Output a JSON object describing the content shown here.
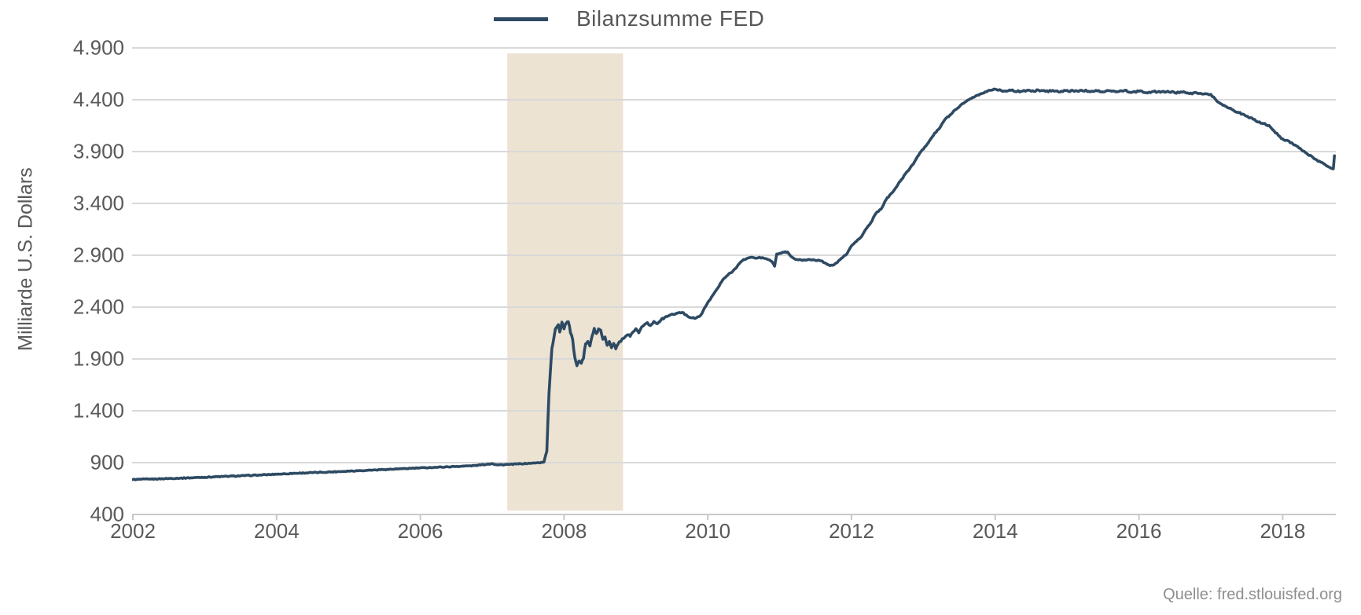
{
  "legend": {
    "label": "Bilanzsumme FED"
  },
  "source": {
    "label": "Quelle: fred.stlouisfed.org"
  },
  "colors": {
    "line": "#2e4a63",
    "band": "#ece3d3",
    "grid": "#d9d9d9",
    "axis": "#c9c9c9",
    "tick_text": "#595959",
    "legend_text": "#575757",
    "source_text": "#8e8e8e"
  },
  "chart_data": {
    "type": "line",
    "title": "Bilanzsumme FED",
    "xlabel": "",
    "ylabel": "Milliarde U.S. Dollars",
    "xlim": [
      2002,
      2018.72
    ],
    "ylim": [
      400,
      4900
    ],
    "grid": true,
    "legend_position": "top-center",
    "y_ticks": [
      {
        "value": 400,
        "label": "400"
      },
      {
        "value": 900,
        "label": "900"
      },
      {
        "value": 1400,
        "label": "1.400"
      },
      {
        "value": 1900,
        "label": "1.900"
      },
      {
        "value": 2400,
        "label": "2.400"
      },
      {
        "value": 2900,
        "label": "2.900"
      },
      {
        "value": 3400,
        "label": "3.400"
      },
      {
        "value": 3900,
        "label": "3.900"
      },
      {
        "value": 4400,
        "label": "4.400"
      },
      {
        "value": 4900,
        "label": "4.900"
      }
    ],
    "x_ticks": [
      {
        "value": 2002,
        "label": "2002"
      },
      {
        "value": 2004,
        "label": "2004"
      },
      {
        "value": 2006,
        "label": "2006"
      },
      {
        "value": 2008,
        "label": "2008"
      },
      {
        "value": 2010,
        "label": "2010"
      },
      {
        "value": 2012,
        "label": "2012"
      },
      {
        "value": 2014,
        "label": "2014"
      },
      {
        "value": 2016,
        "label": "2016"
      },
      {
        "value": 2018,
        "label": "2018"
      }
    ],
    "band": {
      "x_from": 2007.21,
      "x_to": 2008.82,
      "color": "#ece3d3"
    },
    "noise_segments": [
      {
        "until": 2007.74,
        "amp": 4
      },
      {
        "until": 2008.92,
        "amp": 12
      },
      {
        "until": 2009.96,
        "amp": 7
      },
      {
        "until": 2013.95,
        "amp": 6
      },
      {
        "until": 2017.02,
        "amp": 8
      },
      {
        "until": 2018.6,
        "amp": 7
      },
      {
        "until": 2019.0,
        "amp": 3
      }
    ],
    "series": [
      {
        "name": "Bilanzsumme FED",
        "color": "#2e4a63",
        "points": [
          [
            2002.0,
            737
          ],
          [
            2002.25,
            741
          ],
          [
            2002.5,
            747
          ],
          [
            2002.75,
            752
          ],
          [
            2003.0,
            759
          ],
          [
            2003.25,
            766
          ],
          [
            2003.5,
            773
          ],
          [
            2003.75,
            780
          ],
          [
            2004.0,
            788
          ],
          [
            2004.25,
            797
          ],
          [
            2004.5,
            803
          ],
          [
            2004.75,
            810
          ],
          [
            2005.0,
            818
          ],
          [
            2005.25,
            826
          ],
          [
            2005.5,
            833
          ],
          [
            2005.75,
            841
          ],
          [
            2006.0,
            849
          ],
          [
            2006.25,
            856
          ],
          [
            2006.5,
            863
          ],
          [
            2006.75,
            871
          ],
          [
            2007.0,
            890
          ],
          [
            2007.08,
            878
          ],
          [
            2007.25,
            883
          ],
          [
            2007.4,
            889
          ],
          [
            2007.55,
            894
          ],
          [
            2007.65,
            899
          ],
          [
            2007.72,
            905
          ],
          [
            2007.76,
            1010
          ],
          [
            2007.79,
            1560
          ],
          [
            2007.83,
            2000
          ],
          [
            2007.88,
            2190
          ],
          [
            2007.92,
            2230
          ],
          [
            2007.94,
            2160
          ],
          [
            2007.97,
            2255
          ],
          [
            2008.0,
            2190
          ],
          [
            2008.03,
            2245
          ],
          [
            2008.06,
            2258
          ],
          [
            2008.09,
            2150
          ],
          [
            2008.12,
            2085
          ],
          [
            2008.15,
            1915
          ],
          [
            2008.18,
            1835
          ],
          [
            2008.21,
            1880
          ],
          [
            2008.24,
            1858
          ],
          [
            2008.27,
            1905
          ],
          [
            2008.3,
            2045
          ],
          [
            2008.33,
            2068
          ],
          [
            2008.36,
            2025
          ],
          [
            2008.39,
            2120
          ],
          [
            2008.42,
            2195
          ],
          [
            2008.45,
            2145
          ],
          [
            2008.48,
            2190
          ],
          [
            2008.51,
            2178
          ],
          [
            2008.54,
            2090
          ],
          [
            2008.57,
            2112
          ],
          [
            2008.6,
            2032
          ],
          [
            2008.63,
            2068
          ],
          [
            2008.66,
            2008
          ],
          [
            2008.69,
            2050
          ],
          [
            2008.72,
            1998
          ],
          [
            2008.75,
            2042
          ],
          [
            2008.79,
            2068
          ],
          [
            2008.83,
            2098
          ],
          [
            2008.88,
            2132
          ],
          [
            2008.92,
            2118
          ],
          [
            2008.96,
            2160
          ],
          [
            2009.0,
            2192
          ],
          [
            2009.04,
            2152
          ],
          [
            2009.08,
            2208
          ],
          [
            2009.12,
            2232
          ],
          [
            2009.16,
            2250
          ],
          [
            2009.2,
            2222
          ],
          [
            2009.25,
            2262
          ],
          [
            2009.3,
            2240
          ],
          [
            2009.35,
            2278
          ],
          [
            2009.4,
            2300
          ],
          [
            2009.46,
            2318
          ],
          [
            2009.52,
            2330
          ],
          [
            2009.58,
            2342
          ],
          [
            2009.64,
            2348
          ],
          [
            2009.7,
            2325
          ],
          [
            2009.76,
            2298
          ],
          [
            2009.82,
            2290
          ],
          [
            2009.88,
            2308
          ],
          [
            2009.93,
            2355
          ],
          [
            2010.0,
            2445
          ],
          [
            2010.07,
            2515
          ],
          [
            2010.14,
            2585
          ],
          [
            2010.21,
            2665
          ],
          [
            2010.28,
            2710
          ],
          [
            2010.35,
            2748
          ],
          [
            2010.42,
            2805
          ],
          [
            2010.48,
            2848
          ],
          [
            2010.54,
            2868
          ],
          [
            2010.6,
            2880
          ],
          [
            2010.66,
            2872
          ],
          [
            2010.72,
            2880
          ],
          [
            2010.78,
            2872
          ],
          [
            2010.84,
            2858
          ],
          [
            2010.89,
            2840
          ],
          [
            2010.93,
            2795
          ],
          [
            2010.96,
            2912
          ],
          [
            2011.0,
            2920
          ],
          [
            2011.06,
            2928
          ],
          [
            2011.11,
            2932
          ],
          [
            2011.15,
            2895
          ],
          [
            2011.2,
            2868
          ],
          [
            2011.26,
            2856
          ],
          [
            2011.32,
            2850
          ],
          [
            2011.4,
            2860
          ],
          [
            2011.48,
            2856
          ],
          [
            2011.56,
            2848
          ],
          [
            2011.63,
            2826
          ],
          [
            2011.7,
            2800
          ],
          [
            2011.76,
            2810
          ],
          [
            2011.82,
            2846
          ],
          [
            2011.88,
            2880
          ],
          [
            2011.94,
            2918
          ],
          [
            2012.0,
            2992
          ],
          [
            2012.07,
            3035
          ],
          [
            2012.14,
            3080
          ],
          [
            2012.2,
            3152
          ],
          [
            2012.27,
            3215
          ],
          [
            2012.34,
            3305
          ],
          [
            2012.41,
            3345
          ],
          [
            2012.48,
            3435
          ],
          [
            2012.55,
            3495
          ],
          [
            2012.61,
            3545
          ],
          [
            2012.68,
            3615
          ],
          [
            2012.75,
            3685
          ],
          [
            2012.81,
            3735
          ],
          [
            2012.88,
            3805
          ],
          [
            2012.95,
            3885
          ],
          [
            2013.02,
            3945
          ],
          [
            2013.09,
            4010
          ],
          [
            2013.16,
            4080
          ],
          [
            2013.23,
            4130
          ],
          [
            2013.3,
            4210
          ],
          [
            2013.37,
            4252
          ],
          [
            2013.44,
            4302
          ],
          [
            2013.51,
            4342
          ],
          [
            2013.58,
            4378
          ],
          [
            2013.65,
            4408
          ],
          [
            2013.72,
            4432
          ],
          [
            2013.79,
            4456
          ],
          [
            2013.86,
            4476
          ],
          [
            2013.93,
            4492
          ],
          [
            2014.0,
            4502
          ],
          [
            2014.1,
            4482
          ],
          [
            2014.2,
            4494
          ],
          [
            2014.3,
            4478
          ],
          [
            2014.4,
            4490
          ],
          [
            2014.5,
            4482
          ],
          [
            2014.6,
            4494
          ],
          [
            2014.7,
            4480
          ],
          [
            2014.8,
            4490
          ],
          [
            2014.9,
            4474
          ],
          [
            2015.0,
            4490
          ],
          [
            2015.1,
            4480
          ],
          [
            2015.2,
            4492
          ],
          [
            2015.3,
            4482
          ],
          [
            2015.4,
            4490
          ],
          [
            2015.5,
            4475
          ],
          [
            2015.6,
            4487
          ],
          [
            2015.7,
            4478
          ],
          [
            2015.8,
            4490
          ],
          [
            2015.9,
            4472
          ],
          [
            2016.0,
            4482
          ],
          [
            2016.1,
            4468
          ],
          [
            2016.2,
            4480
          ],
          [
            2016.3,
            4472
          ],
          [
            2016.4,
            4482
          ],
          [
            2016.5,
            4467
          ],
          [
            2016.6,
            4473
          ],
          [
            2016.7,
            4458
          ],
          [
            2016.8,
            4468
          ],
          [
            2016.9,
            4455
          ],
          [
            2017.0,
            4452
          ],
          [
            2017.08,
            4390
          ],
          [
            2017.15,
            4358
          ],
          [
            2017.22,
            4330
          ],
          [
            2017.29,
            4308
          ],
          [
            2017.37,
            4280
          ],
          [
            2017.44,
            4262
          ],
          [
            2017.51,
            4240
          ],
          [
            2017.59,
            4212
          ],
          [
            2017.66,
            4185
          ],
          [
            2017.73,
            4170
          ],
          [
            2017.81,
            4152
          ],
          [
            2017.88,
            4100
          ],
          [
            2017.94,
            4055
          ],
          [
            2018.0,
            4022
          ],
          [
            2018.07,
            4005
          ],
          [
            2018.14,
            3975
          ],
          [
            2018.21,
            3948
          ],
          [
            2018.28,
            3905
          ],
          [
            2018.35,
            3872
          ],
          [
            2018.42,
            3845
          ],
          [
            2018.47,
            3822
          ],
          [
            2018.53,
            3798
          ],
          [
            2018.59,
            3775
          ],
          [
            2018.64,
            3752
          ],
          [
            2018.68,
            3738
          ],
          [
            2018.705,
            3733
          ],
          [
            2018.72,
            3860
          ]
        ]
      }
    ]
  }
}
